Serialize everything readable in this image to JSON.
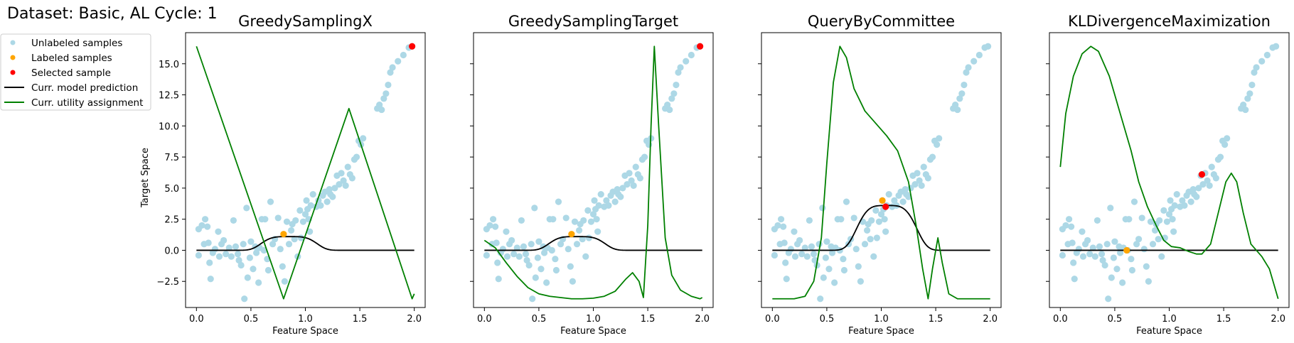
{
  "figure": {
    "suptitle": "Dataset: Basic, AL Cycle: 1",
    "xlabel": "Feature Space",
    "ylabel": "Target Space",
    "legend_placement": "outside-left-top",
    "legend": [
      {
        "label": "Unlabeled samples",
        "marker": "dot",
        "color": "#add8e6"
      },
      {
        "label": "Labeled samples",
        "marker": "dot",
        "color": "#ffa500"
      },
      {
        "label": "Selected sample",
        "marker": "dot",
        "color": "#ff0000"
      },
      {
        "label": "Curr. model prediction",
        "marker": "line",
        "color": "#000000"
      },
      {
        "label": "Curr. utility assignment",
        "marker": "line",
        "color": "#008000"
      }
    ]
  },
  "chart_data": [
    {
      "type": "scatter+line",
      "title": "GreedySamplingX",
      "xlim": [
        -0.1,
        2.1
      ],
      "ylim": [
        -4.6,
        17.5
      ],
      "xticks": [
        "0.0",
        "0.5",
        "1.0",
        "1.5",
        "2.0"
      ],
      "yticks": [
        "−2.5",
        "0.0",
        "2.5",
        "5.0",
        "7.5",
        "10.0",
        "12.5",
        "15.0"
      ],
      "show_ytick_labels": true,
      "prediction": {
        "center": 0.85,
        "height": 1.1,
        "width": 0.28
      },
      "utility": [
        [
          0.0,
          16.4
        ],
        [
          0.8,
          -3.9
        ],
        [
          1.4,
          11.4
        ],
        [
          1.98,
          -3.9
        ],
        [
          2.0,
          -3.5
        ]
      ],
      "labeled": [
        [
          0.8,
          1.3
        ]
      ],
      "selected": [
        [
          1.98,
          16.4
        ]
      ]
    },
    {
      "type": "scatter+line",
      "title": "GreedySamplingTarget",
      "xlim": [
        -0.1,
        2.1
      ],
      "ylim": [
        -4.6,
        17.5
      ],
      "xticks": [
        "0.0",
        "0.5",
        "1.0",
        "1.5",
        "2.0"
      ],
      "yticks": [
        "−2.5",
        "0.0",
        "2.5",
        "5.0",
        "7.5",
        "10.0",
        "12.5",
        "15.0"
      ],
      "show_ytick_labels": false,
      "prediction": {
        "center": 0.85,
        "height": 1.1,
        "width": 0.28
      },
      "utility": [
        [
          0.0,
          0.8
        ],
        [
          0.1,
          0.2
        ],
        [
          0.2,
          -1.0
        ],
        [
          0.3,
          -2.1
        ],
        [
          0.4,
          -3.0
        ],
        [
          0.5,
          -3.5
        ],
        [
          0.6,
          -3.7
        ],
        [
          0.7,
          -3.8
        ],
        [
          0.8,
          -3.9
        ],
        [
          0.9,
          -3.9
        ],
        [
          1.0,
          -3.85
        ],
        [
          1.1,
          -3.7
        ],
        [
          1.2,
          -3.3
        ],
        [
          1.3,
          -2.3
        ],
        [
          1.36,
          -1.8
        ],
        [
          1.42,
          -2.5
        ],
        [
          1.46,
          -3.8
        ],
        [
          1.5,
          2.0
        ],
        [
          1.53,
          10.0
        ],
        [
          1.56,
          16.4
        ],
        [
          1.6,
          10.0
        ],
        [
          1.66,
          1.0
        ],
        [
          1.72,
          -2.0
        ],
        [
          1.8,
          -3.2
        ],
        [
          1.9,
          -3.7
        ],
        [
          1.98,
          -3.9
        ],
        [
          2.0,
          -3.8
        ]
      ],
      "labeled": [
        [
          0.8,
          1.3
        ]
      ],
      "selected": [
        [
          1.98,
          16.4
        ]
      ]
    },
    {
      "type": "scatter+line",
      "title": "QueryByCommittee",
      "xlim": [
        -0.1,
        2.1
      ],
      "ylim": [
        -4.6,
        17.5
      ],
      "xticks": [
        "0.0",
        "0.5",
        "1.0",
        "1.5",
        "2.0"
      ],
      "yticks": [
        "−2.5",
        "0.0",
        "2.5",
        "5.0",
        "7.5",
        "10.0",
        "12.5",
        "15.0"
      ],
      "show_ytick_labels": false,
      "prediction": {
        "center": 1.05,
        "height": 3.6,
        "width": 0.3
      },
      "utility": [
        [
          0.0,
          -3.9
        ],
        [
          0.2,
          -3.9
        ],
        [
          0.3,
          -3.7
        ],
        [
          0.38,
          -2.5
        ],
        [
          0.45,
          1.0
        ],
        [
          0.5,
          7.0
        ],
        [
          0.56,
          13.5
        ],
        [
          0.62,
          16.4
        ],
        [
          0.68,
          15.5
        ],
        [
          0.75,
          13.0
        ],
        [
          0.85,
          11.2
        ],
        [
          0.95,
          10.2
        ],
        [
          1.05,
          9.2
        ],
        [
          1.15,
          8.0
        ],
        [
          1.25,
          5.5
        ],
        [
          1.32,
          2.0
        ],
        [
          1.38,
          -1.5
        ],
        [
          1.43,
          -3.9
        ],
        [
          1.47,
          -1.5
        ],
        [
          1.52,
          1.0
        ],
        [
          1.56,
          -1.0
        ],
        [
          1.62,
          -3.5
        ],
        [
          1.7,
          -3.9
        ],
        [
          2.0,
          -3.9
        ]
      ],
      "labeled": [
        [
          1.01,
          4.0
        ]
      ],
      "selected": [
        [
          1.04,
          3.5
        ]
      ]
    },
    {
      "type": "scatter+line",
      "title": "KLDivergenceMaximization",
      "xlim": [
        -0.1,
        2.1
      ],
      "ylim": [
        -4.6,
        17.5
      ],
      "xticks": [
        "0.0",
        "0.5",
        "1.0",
        "1.5",
        "2.0"
      ],
      "yticks": [
        "−2.5",
        "0.0",
        "2.5",
        "5.0",
        "7.5",
        "10.0",
        "12.5",
        "15.0"
      ],
      "show_ytick_labels": false,
      "prediction": {
        "center": 0.6,
        "height": 0.0,
        "width": 0.3
      },
      "utility": [
        [
          0.0,
          6.7
        ],
        [
          0.05,
          11.0
        ],
        [
          0.12,
          14.0
        ],
        [
          0.2,
          15.8
        ],
        [
          0.28,
          16.4
        ],
        [
          0.35,
          16.0
        ],
        [
          0.45,
          14.0
        ],
        [
          0.55,
          11.0
        ],
        [
          0.65,
          8.0
        ],
        [
          0.72,
          5.5
        ],
        [
          0.8,
          3.5
        ],
        [
          0.88,
          2.0
        ],
        [
          0.95,
          0.8
        ],
        [
          1.02,
          0.3
        ],
        [
          1.1,
          0.2
        ],
        [
          1.18,
          -0.1
        ],
        [
          1.25,
          -0.3
        ],
        [
          1.3,
          -0.3
        ],
        [
          1.38,
          0.5
        ],
        [
          1.45,
          3.0
        ],
        [
          1.52,
          5.5
        ],
        [
          1.57,
          6.2
        ],
        [
          1.62,
          5.5
        ],
        [
          1.68,
          3.0
        ],
        [
          1.75,
          0.5
        ],
        [
          1.85,
          -0.5
        ],
        [
          1.92,
          -1.5
        ],
        [
          2.0,
          -3.9
        ]
      ],
      "labeled": [
        [
          0.61,
          0.0
        ]
      ],
      "selected": [
        [
          1.3,
          6.1
        ]
      ]
    }
  ],
  "unlabeled_points": [
    [
      0.02,
      1.7
    ],
    [
      0.02,
      -0.4
    ],
    [
      0.05,
      2.0
    ],
    [
      0.07,
      0.5
    ],
    [
      0.08,
      2.5
    ],
    [
      0.1,
      1.9
    ],
    [
      0.11,
      0.6
    ],
    [
      0.12,
      -1.0
    ],
    [
      0.13,
      -2.3
    ],
    [
      0.15,
      -0.2
    ],
    [
      0.17,
      0.1
    ],
    [
      0.2,
      1.5
    ],
    [
      0.21,
      -0.5
    ],
    [
      0.23,
      0.5
    ],
    [
      0.25,
      0.8
    ],
    [
      0.27,
      -0.3
    ],
    [
      0.3,
      0.2
    ],
    [
      0.32,
      -0.5
    ],
    [
      0.34,
      2.4
    ],
    [
      0.36,
      0.3
    ],
    [
      0.38,
      -0.3
    ],
    [
      0.39,
      -0.8
    ],
    [
      0.41,
      -1.2
    ],
    [
      0.43,
      0.5
    ],
    [
      0.44,
      -3.9
    ],
    [
      0.46,
      3.4
    ],
    [
      0.47,
      -2.2
    ],
    [
      0.49,
      -0.6
    ],
    [
      0.5,
      0.7
    ],
    [
      0.52,
      -1.5
    ],
    [
      0.54,
      0.3
    ],
    [
      0.55,
      -0.2
    ],
    [
      0.57,
      -2.6
    ],
    [
      0.58,
      0.2
    ],
    [
      0.6,
      2.5
    ],
    [
      0.62,
      0.0
    ],
    [
      0.63,
      2.5
    ],
    [
      0.65,
      -0.7
    ],
    [
      0.66,
      -1.6
    ],
    [
      0.68,
      3.9
    ],
    [
      0.7,
      0.5
    ],
    [
      0.72,
      0.9
    ],
    [
      0.75,
      2.6
    ],
    [
      0.77,
      0.1
    ],
    [
      0.79,
      -1.3
    ],
    [
      0.81,
      -2.5
    ],
    [
      0.83,
      2.3
    ],
    [
      0.85,
      0.5
    ],
    [
      0.87,
      1.6
    ],
    [
      0.88,
      2.1
    ],
    [
      0.9,
      0.9
    ],
    [
      0.91,
      2.4
    ],
    [
      0.93,
      -0.5
    ],
    [
      0.95,
      3.2
    ],
    [
      0.96,
      1.0
    ],
    [
      0.98,
      2.3
    ],
    [
      1.0,
      2.9
    ],
    [
      1.01,
      4.0
    ],
    [
      1.02,
      3.3
    ],
    [
      1.03,
      2.5
    ],
    [
      1.04,
      1.5
    ],
    [
      1.05,
      3.6
    ],
    [
      1.07,
      4.5
    ],
    [
      1.1,
      3.5
    ],
    [
      1.12,
      4.0
    ],
    [
      1.14,
      3.6
    ],
    [
      1.16,
      4.4
    ],
    [
      1.18,
      4.7
    ],
    [
      1.2,
      3.9
    ],
    [
      1.22,
      4.9
    ],
    [
      1.23,
      4.5
    ],
    [
      1.25,
      4.3
    ],
    [
      1.27,
      5.0
    ],
    [
      1.29,
      6.0
    ],
    [
      1.31,
      5.3
    ],
    [
      1.33,
      6.2
    ],
    [
      1.35,
      5.6
    ],
    [
      1.37,
      5.2
    ],
    [
      1.39,
      6.7
    ],
    [
      1.41,
      6.1
    ],
    [
      1.43,
      5.8
    ],
    [
      1.45,
      7.3
    ],
    [
      1.47,
      7.5
    ],
    [
      1.49,
      8.8
    ],
    [
      1.51,
      8.5
    ],
    [
      1.53,
      9.0
    ],
    [
      1.66,
      11.4
    ],
    [
      1.68,
      11.7
    ],
    [
      1.7,
      11.3
    ],
    [
      1.72,
      12.2
    ],
    [
      1.74,
      12.6
    ],
    [
      1.76,
      13.3
    ],
    [
      1.78,
      14.3
    ],
    [
      1.8,
      14.7
    ],
    [
      1.85,
      15.2
    ],
    [
      1.9,
      15.7
    ],
    [
      1.95,
      16.3
    ],
    [
      1.98,
      16.4
    ]
  ]
}
